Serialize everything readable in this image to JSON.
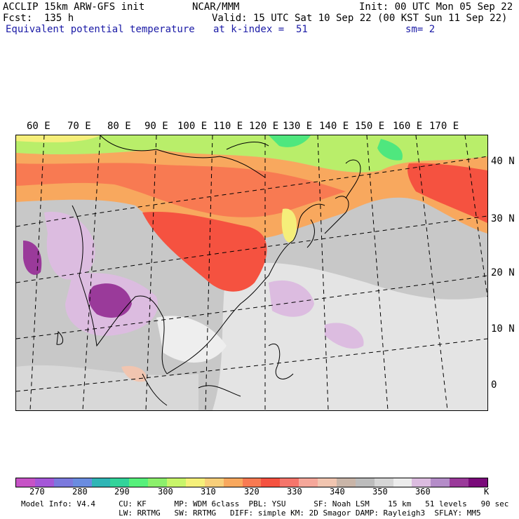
{
  "header": {
    "model_line": "ACCLIP 15km ARW-GFS init",
    "org": "NCAR/MMM",
    "init": "Init: 00 UTC Mon 05 Sep 22",
    "fcst": "Fcst:  135 h",
    "valid": "Valid: 15 UTC Sat 10 Sep 22 (00 KST Sun 11 Sep 22)",
    "field": "Equivalent potential temperature",
    "level": "at k-index =  51",
    "smoothing": "sm= 2"
  },
  "map": {
    "longitude_labels": [
      "60 E",
      "70 E",
      "80 E",
      "90 E",
      "100 E",
      "110 E",
      "120 E",
      "130 E",
      "140 E",
      "150 E",
      "160 E",
      "170 E"
    ],
    "latitude_labels": [
      "40 N",
      "30 N",
      "20 N",
      "10 N",
      "0"
    ]
  },
  "colorbar": {
    "unit": "K",
    "tick_labels": [
      "270",
      "280",
      "290",
      "300",
      "310",
      "320",
      "330",
      "340",
      "350",
      "360"
    ],
    "colors": [
      "#c653c6",
      "#a457d8",
      "#7b79dd",
      "#6a8ce0",
      "#2fb5b5",
      "#32d39a",
      "#56f07b",
      "#8cf06c",
      "#c8f56a",
      "#f5f07a",
      "#f8cf7a",
      "#f8a85e",
      "#f87a52",
      "#f55240",
      "#f5756b",
      "#f5a79a",
      "#f1c5b0",
      "#c9b5a8",
      "#bcbcbc",
      "#d6d6d6",
      "#ececec",
      "#dcbce0",
      "#b48cc8",
      "#9a3a9a",
      "#7a0a7a"
    ]
  },
  "footer": {
    "line1": "Model Info: V4.4     CU: KF      MP: WDM 6class  PBL: YSU      SF: Noah LSM    15 km   51 levels   90 sec",
    "line2": "                     LW: RRTMG   SW: RRTMG   DIFF: simple KM: 2D Smagor DAMP: Rayleigh3  SFLAY: MM5"
  }
}
